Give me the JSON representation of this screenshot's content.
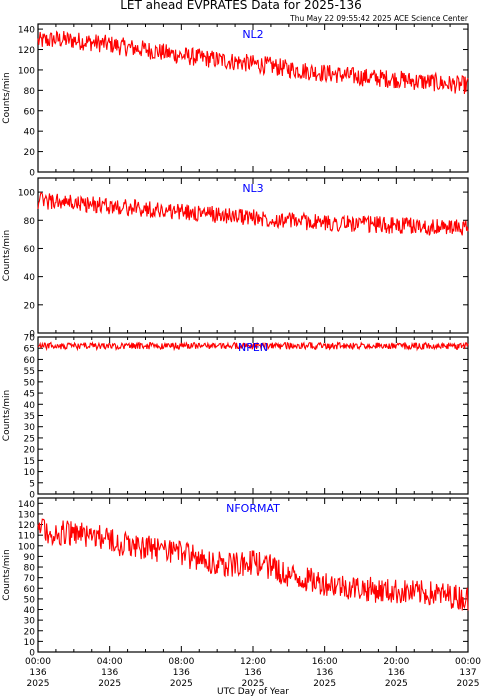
{
  "title": "LET ahead EVPRATES Data for 2025-136",
  "timestamp": "Thu May 22 09:55:42 2025 ACE Science Center",
  "xlabel": "UTC Day of Year",
  "x_ticks": [
    {
      "time": "00:00",
      "doy": "136",
      "year": "2025"
    },
    {
      "time": "04:00",
      "doy": "136",
      "year": "2025"
    },
    {
      "time": "08:00",
      "doy": "136",
      "year": "2025"
    },
    {
      "time": "12:00",
      "doy": "136",
      "year": "2025"
    },
    {
      "time": "16:00",
      "doy": "136",
      "year": "2025"
    },
    {
      "time": "20:00",
      "doy": "136",
      "year": "2025"
    },
    {
      "time": "00:00",
      "doy": "137",
      "year": "2025"
    }
  ],
  "colors": {
    "series": "#ff0000",
    "panel_label": "#0000ff",
    "axes": "#000000"
  },
  "chart_data": [
    {
      "type": "line",
      "series_name": "NL2",
      "ylabel": "Counts/min",
      "xlim_hours": [
        0,
        24
      ],
      "ylim": [
        0,
        145
      ],
      "yticks": [
        0,
        20,
        40,
        60,
        80,
        100,
        120,
        140
      ],
      "x_hours": [
        0,
        1,
        2,
        3,
        4,
        5,
        6,
        7,
        8,
        9,
        10,
        11,
        12,
        13,
        14,
        15,
        16,
        17,
        18,
        19,
        20,
        21,
        22,
        23,
        24
      ],
      "values": [
        128,
        130,
        129,
        127,
        125,
        122,
        120,
        117,
        114,
        112,
        110,
        108,
        106,
        104,
        101,
        99,
        97,
        95,
        93,
        92,
        91,
        89,
        88,
        86,
        85
      ],
      "noise": 9
    },
    {
      "type": "line",
      "series_name": "NL3",
      "ylabel": "Counts/min",
      "xlim_hours": [
        0,
        24
      ],
      "ylim": [
        0,
        110
      ],
      "yticks": [
        0,
        20,
        40,
        60,
        80,
        100
      ],
      "x_hours": [
        0,
        1,
        2,
        3,
        4,
        5,
        6,
        7,
        8,
        9,
        10,
        11,
        12,
        13,
        14,
        15,
        16,
        17,
        18,
        19,
        20,
        21,
        22,
        23,
        24
      ],
      "values": [
        94,
        93,
        92,
        91,
        90,
        89,
        88,
        87,
        86,
        85,
        84,
        83,
        82,
        81,
        80,
        79,
        78,
        78,
        77,
        77,
        76,
        76,
        75,
        75,
        74
      ],
      "noise": 6
    },
    {
      "type": "line",
      "series_name": "NPEN",
      "ylabel": "Counts/min",
      "xlim_hours": [
        0,
        24
      ],
      "ylim": [
        0,
        70
      ],
      "yticks": [
        0,
        5,
        10,
        15,
        20,
        25,
        30,
        35,
        40,
        45,
        50,
        55,
        60,
        65,
        70
      ],
      "x_hours": [
        0,
        24
      ],
      "values": [
        66,
        66
      ],
      "noise": 1.5
    },
    {
      "type": "line",
      "series_name": "NFORMAT",
      "ylabel": "Counts/min",
      "xlim_hours": [
        0,
        24
      ],
      "ylim": [
        0,
        145
      ],
      "yticks": [
        0,
        10,
        20,
        30,
        40,
        50,
        60,
        70,
        80,
        90,
        100,
        110,
        120,
        130,
        140
      ],
      "x_hours": [
        0,
        1,
        2,
        3,
        4,
        5,
        6,
        7,
        8,
        9,
        10,
        11,
        12,
        13,
        14,
        15,
        16,
        17,
        18,
        19,
        20,
        21,
        22,
        23,
        24
      ],
      "values": [
        115,
        113,
        112,
        110,
        105,
        100,
        98,
        96,
        92,
        88,
        84,
        82,
        85,
        80,
        72,
        68,
        65,
        62,
        60,
        58,
        57,
        56,
        55,
        53,
        50
      ],
      "noise": 12
    }
  ]
}
